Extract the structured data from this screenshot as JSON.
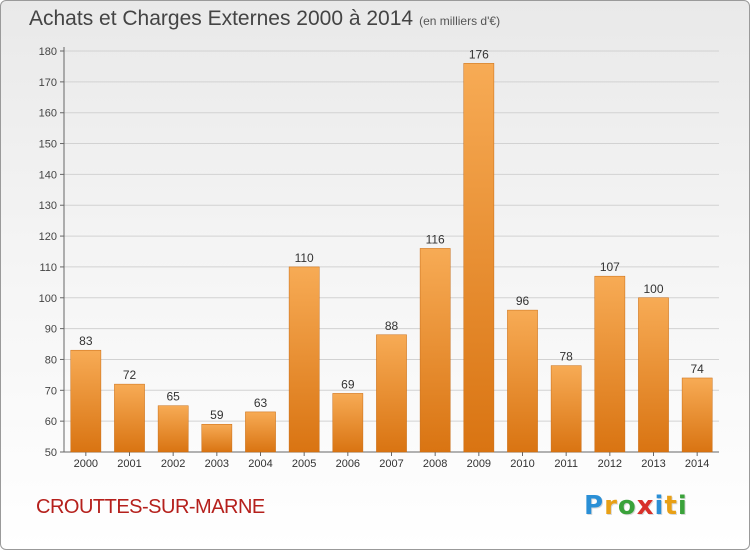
{
  "header": {
    "title": "Achats et Charges Externes 2000 à 2014",
    "subtitle": "(en milliers d'€)"
  },
  "footer": {
    "commune": "CROUTTES-SUR-MARNE",
    "logo_text": "Proxiti"
  },
  "colors": {
    "bar_light": "#f5a64e",
    "bar_dark": "#d97412",
    "commune_text": "#b5201c"
  },
  "chart_data": {
    "type": "bar",
    "title": "Achats et Charges Externes 2000 à 2014",
    "subtitle": "(en milliers d'€)",
    "categories": [
      "2000",
      "2001",
      "2002",
      "2003",
      "2004",
      "2005",
      "2006",
      "2007",
      "2008",
      "2009",
      "2010",
      "2011",
      "2012",
      "2013",
      "2014"
    ],
    "values": [
      83,
      72,
      65,
      59,
      63,
      110,
      69,
      88,
      116,
      176,
      96,
      78,
      107,
      100,
      74
    ],
    "ylim": [
      50,
      180
    ],
    "yticks": [
      50,
      60,
      70,
      80,
      90,
      100,
      110,
      120,
      130,
      140,
      150,
      160,
      170,
      180
    ],
    "grid": true,
    "data_labels": true
  }
}
